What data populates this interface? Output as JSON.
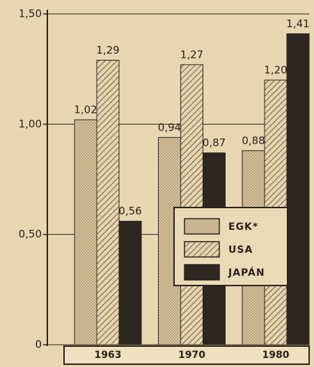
{
  "chart_data": {
    "type": "bar",
    "categories": [
      "1963",
      "1970",
      "1980"
    ],
    "series": [
      {
        "name": "EGK*",
        "color": "#d8c49c",
        "pattern": "dots",
        "values": [
          1.02,
          0.94,
          0.88
        ],
        "value_labels": [
          "1,02",
          "0,94",
          "0,88"
        ]
      },
      {
        "name": "USA",
        "color": "#e6d4ad",
        "pattern": "hatch",
        "values": [
          1.29,
          1.27,
          1.2
        ],
        "value_labels": [
          "1,29",
          "1,27",
          "1,20"
        ]
      },
      {
        "name": "JAPÁN",
        "color": "#2e2620",
        "pattern": "solid",
        "values": [
          0.56,
          0.87,
          1.41
        ],
        "value_labels": [
          "0,56",
          "0,87",
          "1,41"
        ]
      }
    ],
    "ylim": [
      0,
      1.5
    ],
    "yticks": [
      0,
      {
        "value": 0.5,
        "label": "0,50"
      },
      {
        "value": 1.0,
        "label": "1,00"
      },
      {
        "value": 1.5,
        "label": "1,50"
      }
    ],
    "grid": true
  }
}
